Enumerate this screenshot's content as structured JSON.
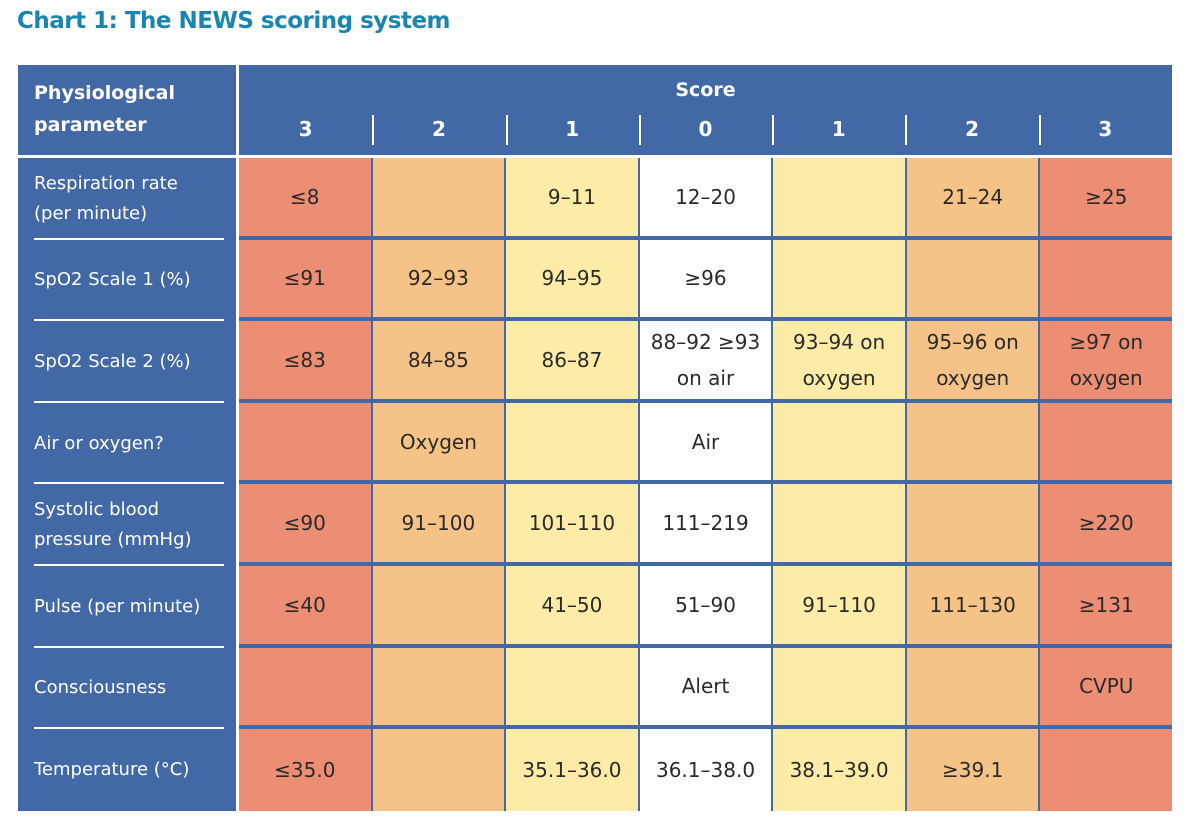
{
  "title": "Chart 1:  The NEWS scoring system",
  "header": {
    "parameter_label": "Physiological parameter",
    "score_label": "Score",
    "scores": [
      "3",
      "2",
      "1",
      "0",
      "1",
      "2",
      "3"
    ]
  },
  "colors": {
    "header_blue": "#4368a6",
    "score3": "#ec8e73",
    "score2": "#f5c388",
    "score1": "#fdeca7",
    "score0": "#ffffff",
    "title": "#1a86b0"
  },
  "rows": [
    {
      "parameter": "Respiration rate (per minute)",
      "cells": [
        "≤8",
        "",
        "9–11",
        "12–20",
        "",
        "21–24",
        "≥25"
      ]
    },
    {
      "parameter": "SpO2 Scale 1 (%)",
      "cells": [
        "≤91",
        "92–93",
        "94–95",
        "≥96",
        "",
        "",
        ""
      ]
    },
    {
      "parameter": "SpO2 Scale 2 (%)",
      "cells": [
        "≤83",
        "84–85",
        "86–87",
        "88–92 ≥93 on air",
        "93–94 on oxygen",
        "95–96 on oxygen",
        "≥97 on oxygen"
      ]
    },
    {
      "parameter": "Air or oxygen?",
      "cells": [
        "",
        "Oxygen",
        "",
        "Air",
        "",
        "",
        ""
      ]
    },
    {
      "parameter": "Systolic blood pressure (mmHg)",
      "cells": [
        "≤90",
        "91–100",
        "101–110",
        "111–219",
        "",
        "",
        "≥220"
      ]
    },
    {
      "parameter": "Pulse (per minute)",
      "cells": [
        "≤40",
        "",
        "41–50",
        "51–90",
        "91–110",
        "111–130",
        "≥131"
      ]
    },
    {
      "parameter": "Consciousness",
      "cells": [
        "",
        "",
        "",
        "Alert",
        "",
        "",
        "CVPU"
      ]
    },
    {
      "parameter": "Temperature (°C)",
      "cells": [
        "≤35.0",
        "",
        "35.1–36.0",
        "36.1–38.0",
        "38.1–39.0",
        "≥39.1",
        ""
      ]
    }
  ]
}
